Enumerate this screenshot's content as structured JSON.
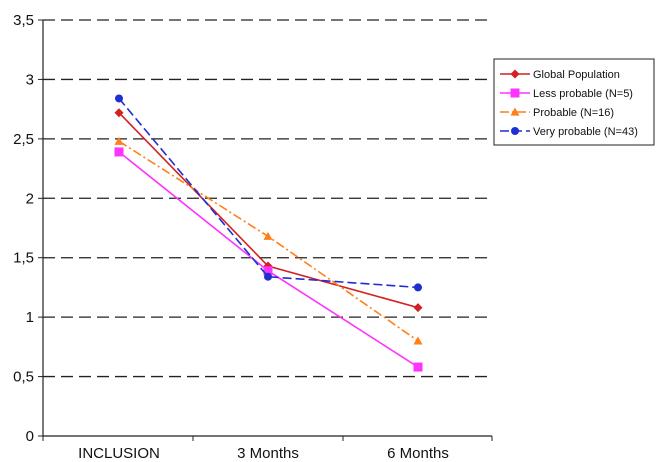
{
  "chart_data": {
    "type": "line",
    "categories": [
      "INCLUSION",
      "3 Months",
      "6 Months"
    ],
    "yticks": [
      "0",
      "0,5",
      "1",
      "1,5",
      "2",
      "2,5",
      "3",
      "3,5"
    ],
    "ylim": [
      0,
      3.5
    ],
    "grid": "horizontal dashed",
    "legend_position": "right",
    "series": [
      {
        "name": "Global Population",
        "values": [
          2.72,
          1.43,
          1.08
        ],
        "color": "#d42020",
        "marker": "diamond",
        "dash": "solid"
      },
      {
        "name": "Less probable (N=5)",
        "values": [
          2.39,
          1.39,
          0.58
        ],
        "color": "#ff33ff",
        "marker": "square",
        "dash": "solid"
      },
      {
        "name": "Probable (N=16)",
        "values": [
          2.48,
          1.68,
          0.8
        ],
        "color": "#ff7f1a",
        "marker": "triangle",
        "dash": "dashdot"
      },
      {
        "name": "Very probable (N=43)",
        "values": [
          2.84,
          1.34,
          1.25
        ],
        "color": "#1f2fd0",
        "marker": "circle",
        "dash": "dashed"
      }
    ]
  }
}
